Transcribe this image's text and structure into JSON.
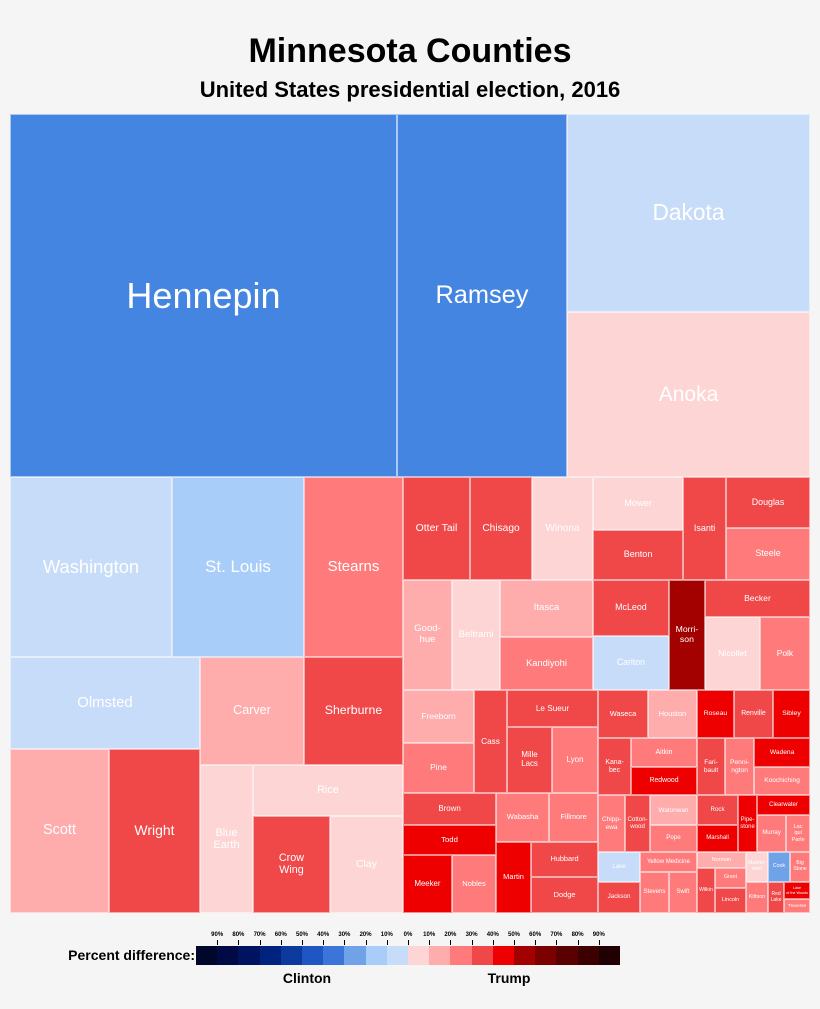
{
  "chart_data": {
    "type": "treemap",
    "title": "Minnesota Counties",
    "subtitle": "United States presidential election, 2016",
    "categories": [
      "Hennepin",
      "Ramsey",
      "Dakota",
      "Anoka",
      "Washington",
      "St. Louis",
      "Stearns",
      "Olmsted",
      "Scott",
      "Wright",
      "Carver",
      "Sherburne",
      "Blue\nEarth",
      "Rice",
      "Crow\nWing",
      "Clay",
      "Otter Tail",
      "Chisago",
      "Winona",
      "Mower",
      "Benton",
      "Isanti",
      "Douglas",
      "Steele",
      "Good-\nhue",
      "Beltrami",
      "Itasca",
      "Kandiyohi",
      "McLeod",
      "Carlton",
      "Morri-\nson",
      "Becker",
      "Nicollet",
      "Polk",
      "Freeborn",
      "Pine",
      "Cass",
      "Le Sueur",
      "Mille\nLacs",
      "Lyon",
      "Brown",
      "Todd",
      "Meeker",
      "Nobles",
      "Wabasha",
      "Fillmore",
      "Martin",
      "Hubbard",
      "Dodge",
      "Waseca",
      "Houston",
      "Roseau",
      "Renville",
      "Sibley",
      "Kana-\nbec",
      "Aitkin",
      "Redwood",
      "Fari-\nbault",
      "Penni-\nngton",
      "Wadena",
      "Koochiching",
      "Chipp-\newa",
      "Cotton-\nwood",
      "Watonwan",
      "Pope",
      "Rock",
      "Marshall",
      "Pipe-\nstone",
      "Clearwater",
      "Murray",
      "Lac\nqui\nParle",
      "Lake",
      "Jackson",
      "Yellow Medicine",
      "Stevens",
      "Swift",
      "Norman",
      "Wilkin",
      "Grant",
      "Lincoln",
      "Mahno-\nmen",
      "Kittson",
      "Cook",
      "Big\nStone",
      "Red\nLake",
      "Lake\nof the Woods",
      "Traverse"
    ],
    "values": [
      702.4,
      308.6,
      240.6,
      200.5,
      145.8,
      118.8,
      89.1,
      87.4,
      81.2,
      74.6,
      56.2,
      53.5,
      39.2,
      38.3,
      37.3,
      35.4,
      34.5,
      31.9,
      31.4,
      23.9,
      22.5,
      22.1,
      21.4,
      21.8,
      27.0,
      26.4,
      26.5,
      24.6,
      21.3,
      20.5,
      19.8,
      19.4,
      20.1,
      18.3,
      18.8,
      17.8,
      17.0,
      16.8,
      14.9,
      15.2,
      14.9,
      14.0,
      14.2,
      12.8,
      13.0,
      12.0,
      12.4,
      11.7,
      12.1,
      12.0,
      11.8,
      8.9,
      9.4,
      8.9,
      9.4,
      9.6,
      9.2,
      8.0,
      8.3,
      8.1,
      7.8,
      7.7,
      7.1,
      7.1,
      6.3,
      6.2,
      5.5,
      5.4,
      5.3,
      5.4,
      4.4,
      6.3,
      6.5,
      5.7,
      5.9,
      5.7,
      3.9,
      4.1,
      3.1,
      3.9,
      3.3,
      3.4,
      3.3,
      3.0,
      2.5,
      2.2,
      1.8
    ],
    "colors": [
      "#4385e0",
      "#4385e0",
      "#c6dcf9",
      "#fdd5d5",
      "#c6dcf9",
      "#a9cdf9",
      "#ff7b7b",
      "#c6dcf9",
      "#ffacac",
      "#f04848",
      "#ffacac",
      "#f04848",
      "#fdd5d5",
      "#fdd5d5",
      "#f04848",
      "#fdd5d5",
      "#f04848",
      "#f04848",
      "#fdd5d5",
      "#fdd5d5",
      "#f04848",
      "#f04848",
      "#f04848",
      "#ff7b7b",
      "#ffacac",
      "#fdd5d5",
      "#ffacac",
      "#ff7b7b",
      "#f04848",
      "#c6dcf9",
      "#a30000",
      "#f04848",
      "#fdd5d5",
      "#ff7b7b",
      "#ffacac",
      "#ff7b7b",
      "#f04848",
      "#f04848",
      "#f04848",
      "#ff7b7b",
      "#f04848",
      "#ee0000",
      "#ee0000",
      "#ff7b7b",
      "#ff7b7b",
      "#ff7b7b",
      "#ee0000",
      "#f04848",
      "#f04848",
      "#f04848",
      "#ffacac",
      "#ee0000",
      "#f04848",
      "#ee0000",
      "#f04848",
      "#ff7b7b",
      "#ee0000",
      "#f04848",
      "#ff7b7b",
      "#ee0000",
      "#ff7b7b",
      "#ff7b7b",
      "#f04848",
      "#ffacac",
      "#ff7b7b",
      "#f04848",
      "#ee0000",
      "#ee0000",
      "#ee0000",
      "#ff7b7b",
      "#ff7b7b",
      "#c6dcf9",
      "#f04848",
      "#ff7b7b",
      "#ff7b7b",
      "#ff7b7b",
      "#ffacac",
      "#f04848",
      "#ff7b7b",
      "#f04848",
      "#fdd5d5",
      "#ff7b7b",
      "#6fa2e6",
      "#ff7b7b",
      "#f04848",
      "#ee0000",
      "#ff7b7b"
    ],
    "legend": {
      "title": "Percent difference:",
      "lim": [
        -100,
        100
      ],
      "ticks": [
        {
          "value": -90,
          "label": "90%"
        },
        {
          "value": -80,
          "label": "80%"
        },
        {
          "value": -70,
          "label": "70%"
        },
        {
          "value": -60,
          "label": "60%"
        },
        {
          "value": -50,
          "label": "50%"
        },
        {
          "value": -40,
          "label": "40%"
        },
        {
          "value": -30,
          "label": "30%"
        },
        {
          "value": -20,
          "label": "20%"
        },
        {
          "value": -10,
          "label": "10%"
        },
        {
          "value": 0,
          "label": "0%"
        },
        {
          "value": 10,
          "label": "10%"
        },
        {
          "value": 20,
          "label": "20%"
        },
        {
          "value": 30,
          "label": "30%"
        },
        {
          "value": 40,
          "label": "40%"
        },
        {
          "value": 50,
          "label": "50%"
        },
        {
          "value": 60,
          "label": "60%"
        },
        {
          "value": 70,
          "label": "70%"
        },
        {
          "value": 80,
          "label": "80%"
        },
        {
          "value": 90,
          "label": "90%"
        }
      ],
      "colors": [
        "#00072b",
        "#000a45",
        "#001360",
        "#00237f",
        "#0d3a9e",
        "#1f56c4",
        "#3b75da",
        "#6fa2e6",
        "#a9cdf9",
        "#c6dcf9",
        "#fdd5d5",
        "#ffacac",
        "#ff7b7b",
        "#f04848",
        "#ee0000",
        "#a30000",
        "#7b0000",
        "#5a0000",
        "#3c0000",
        "#200000"
      ],
      "labels": [
        "Clinton",
        "Trump"
      ]
    }
  }
}
